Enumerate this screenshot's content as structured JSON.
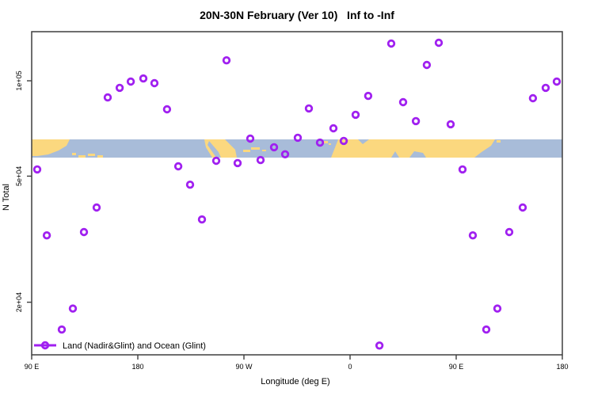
{
  "colors": {
    "marker": "#A020F0",
    "land": "#FBD87F",
    "ocean": "#A8BCD9",
    "axis": "#3F3F3F",
    "background": "#FFFFFF"
  },
  "legend": {
    "label": "Land (Nadir&Glint) and Ocean (Glint)"
  },
  "chart_data": {
    "type": "scatter",
    "title": "20N-30N February (Ver 10)   Inf to -Inf",
    "xlabel": "Longitude (deg E)",
    "ylabel": "N Total",
    "x_axis": {
      "note": "longitude unwrapped eastward, 90E to 180 wrapping past dateline and Greenwich back to 180",
      "domain": [
        90,
        540
      ],
      "ticks": [
        {
          "value": 90,
          "label": "90 E"
        },
        {
          "value": 180,
          "label": "180"
        },
        {
          "value": 270,
          "label": "90 W"
        },
        {
          "value": 360,
          "label": "0"
        },
        {
          "value": 450,
          "label": "90 E"
        },
        {
          "value": 540,
          "label": "180"
        }
      ]
    },
    "y_axis": {
      "scale": "log10",
      "domain": [
        13600,
        143000
      ],
      "ticks": [
        {
          "value": 100000,
          "label": "1e+05"
        },
        {
          "value": 50000,
          "label": "5e+04"
        },
        {
          "value": 20000,
          "label": "2e+04"
        }
      ]
    },
    "map_band": {
      "description": "20N-30N latitude land/ocean strip map drawn across plot",
      "n_top": 65300,
      "n_bottom": 57200
    },
    "series": [
      {
        "name": "Land (Nadir&Glint) and Ocean (Glint)",
        "marker": "open-circle",
        "color": "#A020F0",
        "points": [
          {
            "lon": 154.5,
            "n": 88600
          },
          {
            "lon": 164.6,
            "n": 95000
          },
          {
            "lon": 174.0,
            "n": 99400
          },
          {
            "lon": 184.7,
            "n": 101700
          },
          {
            "lon": 194.1,
            "n": 98300
          },
          {
            "lon": 204.8,
            "n": 81300
          },
          {
            "lon": 255.2,
            "n": 116000
          },
          {
            "lon": 275.4,
            "n": 65700
          },
          {
            "lon": 295.5,
            "n": 61700
          },
          {
            "lon": 304.9,
            "n": 58600
          },
          {
            "lon": 315.7,
            "n": 66100
          },
          {
            "lon": 325.1,
            "n": 81800
          },
          {
            "lon": 334.5,
            "n": 63800
          },
          {
            "lon": 345.9,
            "n": 70800
          },
          {
            "lon": 354.6,
            "n": 64600
          },
          {
            "lon": 364.7,
            "n": 78100
          },
          {
            "lon": 375.4,
            "n": 89600
          },
          {
            "lon": 394.9,
            "n": 131100
          },
          {
            "lon": 405.0,
            "n": 85600
          },
          {
            "lon": 415.8,
            "n": 74600
          },
          {
            "lon": 425.1,
            "n": 112200
          },
          {
            "lon": 435.2,
            "n": 131800
          },
          {
            "lon": 445.3,
            "n": 72900
          },
          {
            "lon": 94.7,
            "n": 52500
          },
          {
            "lon": 102.8,
            "n": 32500
          },
          {
            "lon": 134.3,
            "n": 33300
          },
          {
            "lon": 145.1,
            "n": 39800
          },
          {
            "lon": 214.3,
            "n": 53700
          },
          {
            "lon": 224.3,
            "n": 47000
          },
          {
            "lon": 234.4,
            "n": 36500
          },
          {
            "lon": 246.5,
            "n": 55900
          },
          {
            "lon": 264.6,
            "n": 55000
          },
          {
            "lon": 284.1,
            "n": 56200
          },
          {
            "lon": 455.4,
            "n": 52500
          },
          {
            "lon": 464.1,
            "n": 32500
          },
          {
            "lon": 495.0,
            "n": 33300
          },
          {
            "lon": 506.4,
            "n": 39800
          },
          {
            "lon": 515.1,
            "n": 88100
          },
          {
            "lon": 525.9,
            "n": 95000
          },
          {
            "lon": 535.3,
            "n": 99400
          },
          {
            "lon": 124.9,
            "n": 19100
          },
          {
            "lon": 115.5,
            "n": 16400
          },
          {
            "lon": 384.9,
            "n": 14600
          },
          {
            "lon": 484.9,
            "n": 19100
          },
          {
            "lon": 475.5,
            "n": 16400
          }
        ]
      }
    ]
  }
}
